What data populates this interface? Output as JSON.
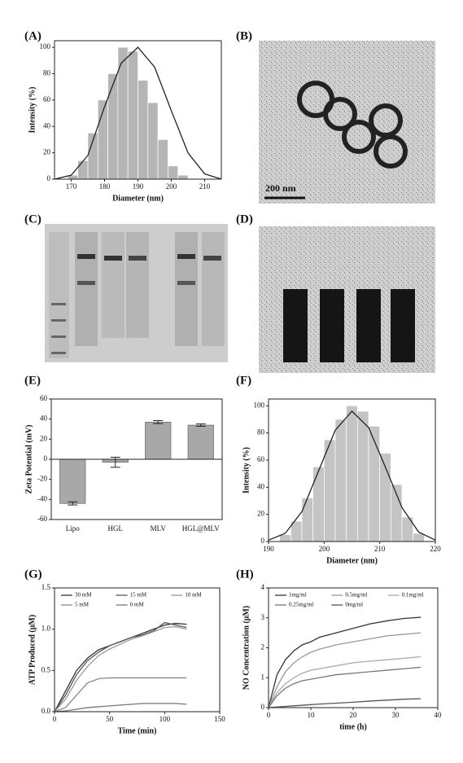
{
  "chart_data": [
    {
      "type": "histogram",
      "label": "(A)",
      "xlabel": "Diameter (nm)",
      "ylabel": "Intensity (%)",
      "bins": [
        169,
        172,
        175,
        178,
        181,
        184,
        187,
        190,
        193,
        196,
        199,
        202,
        205
      ],
      "values": [
        3,
        14,
        35,
        60,
        80,
        100,
        97,
        75,
        58,
        30,
        10,
        3
      ],
      "curve_x": [
        165,
        170,
        175,
        180,
        185,
        190,
        195,
        200,
        205,
        210,
        215
      ],
      "curve_y": [
        0,
        3,
        18,
        55,
        88,
        100,
        85,
        52,
        20,
        4,
        0
      ],
      "color": "#b5b5b5",
      "curve_color": "#222222",
      "xlim": [
        165,
        215
      ],
      "xticks": [
        170,
        180,
        190,
        200,
        210
      ],
      "ylim": [
        0,
        105
      ],
      "yticks": [
        0,
        20,
        40,
        60,
        80,
        100
      ]
    },
    {
      "type": "image",
      "label": "(B)",
      "scale_bar": "200 nm"
    },
    {
      "type": "image",
      "label": "(C)"
    },
    {
      "type": "image",
      "label": "(D)"
    },
    {
      "type": "bar",
      "label": "(E)",
      "ylabel": "Zeta Potential (mV)",
      "categories": [
        "Lipo",
        "HGL",
        "MLV",
        "HGL@MLV"
      ],
      "values": [
        -44,
        -3,
        37,
        34
      ],
      "errors": [
        1.5,
        5,
        1.5,
        1.2
      ],
      "color": "#a8a8a8",
      "ylim": [
        -60,
        60
      ],
      "yticks": [
        -60,
        -40,
        -20,
        0,
        20,
        40,
        60
      ]
    },
    {
      "type": "histogram",
      "label": "(F)",
      "xlabel": "Diameter (nm)",
      "ylabel": "Intensity (%)",
      "bins": [
        192,
        194,
        196,
        198,
        200,
        202,
        204,
        206,
        208,
        210,
        212,
        214,
        216,
        218
      ],
      "values": [
        5,
        15,
        32,
        55,
        75,
        90,
        100,
        96,
        85,
        65,
        42,
        18,
        6
      ],
      "curve_x": [
        190,
        193,
        196,
        199,
        202,
        205,
        208,
        211,
        214,
        217,
        220
      ],
      "curve_y": [
        1,
        6,
        22,
        52,
        82,
        96,
        84,
        55,
        25,
        7,
        1
      ],
      "color": "#c4c4c4",
      "curve_color": "#222222",
      "xlim": [
        190,
        220
      ],
      "xticks": [
        190,
        200,
        210,
        220
      ],
      "ylim": [
        0,
        105
      ],
      "yticks": [
        0,
        20,
        40,
        60,
        80,
        100
      ]
    },
    {
      "type": "line",
      "label": "(G)",
      "xlabel": "Time (min)",
      "ylabel": "ATP Produced (μM)",
      "x": [
        0,
        10,
        20,
        30,
        40,
        50,
        60,
        70,
        80,
        90,
        100,
        110,
        120
      ],
      "series": [
        {
          "name": "30 mM",
          "color": "#333333",
          "values": [
            0,
            0.25,
            0.5,
            0.65,
            0.75,
            0.8,
            0.85,
            0.9,
            0.95,
            1.0,
            1.05,
            1.07,
            1.06
          ]
        },
        {
          "name": "15 mM",
          "color": "#555555",
          "values": [
            0,
            0.2,
            0.45,
            0.62,
            0.72,
            0.8,
            0.85,
            0.9,
            0.93,
            0.98,
            1.08,
            1.05,
            1.02
          ]
        },
        {
          "name": "10 mM",
          "color": "#999999",
          "values": [
            0,
            0.15,
            0.38,
            0.55,
            0.68,
            0.76,
            0.82,
            0.88,
            0.92,
            0.97,
            1.02,
            1.03,
            1.0
          ]
        },
        {
          "name": "5 mM",
          "color": "#888888",
          "values": [
            0,
            0.05,
            0.2,
            0.35,
            0.4,
            0.41,
            0.41,
            0.41,
            0.41,
            0.41,
            0.41,
            0.41,
            0.41
          ]
        },
        {
          "name": "0 mM",
          "color": "#777777",
          "values": [
            0,
            0.01,
            0.03,
            0.05,
            0.06,
            0.07,
            0.08,
            0.09,
            0.1,
            0.1,
            0.1,
            0.1,
            0.09
          ]
        }
      ],
      "xlim": [
        0,
        150
      ],
      "xticks": [
        0,
        50,
        100,
        150
      ],
      "ylim": [
        0,
        1.5
      ],
      "yticks": [
        {
          "value": 0,
          "label": "0.0"
        },
        {
          "value": 0.5,
          "label": "0.5"
        },
        {
          "value": 1,
          "label": "1.0"
        },
        {
          "value": 1.5,
          "label": "1.5"
        }
      ]
    },
    {
      "type": "line",
      "label": "(H)",
      "xlabel": "time (h)",
      "ylabel": "NO Concentration (μM)",
      "x": [
        0,
        2,
        4,
        6,
        8,
        10,
        12,
        16,
        20,
        24,
        28,
        32,
        36
      ],
      "series": [
        {
          "name": "1mg/ml",
          "color": "#333333",
          "values": [
            0,
            1.1,
            1.6,
            1.9,
            2.1,
            2.2,
            2.35,
            2.5,
            2.65,
            2.8,
            2.9,
            2.98,
            3.02
          ]
        },
        {
          "name": "0.5mg/ml",
          "color": "#999999",
          "values": [
            0,
            0.7,
            1.2,
            1.5,
            1.7,
            1.85,
            1.95,
            2.1,
            2.2,
            2.3,
            2.4,
            2.45,
            2.5
          ]
        },
        {
          "name": "0.1mg/ml",
          "color": "#aaaaaa",
          "values": [
            0,
            0.5,
            0.8,
            1.0,
            1.15,
            1.25,
            1.3,
            1.4,
            1.5,
            1.55,
            1.6,
            1.65,
            1.7
          ]
        },
        {
          "name": "0.25mg/ml",
          "color": "#777777",
          "values": [
            0,
            0.4,
            0.65,
            0.8,
            0.9,
            0.95,
            1.0,
            1.1,
            1.15,
            1.2,
            1.25,
            1.3,
            1.35
          ]
        },
        {
          "name": "0mg/ml",
          "color": "#555555",
          "values": [
            0,
            0.02,
            0.04,
            0.06,
            0.08,
            0.1,
            0.12,
            0.15,
            0.18,
            0.22,
            0.25,
            0.28,
            0.3
          ]
        }
      ],
      "xlim": [
        0,
        40
      ],
      "xticks": [
        0,
        10,
        20,
        30,
        40
      ],
      "ylim": [
        0,
        4
      ],
      "yticks": [
        0,
        1,
        2,
        3,
        4
      ]
    }
  ]
}
